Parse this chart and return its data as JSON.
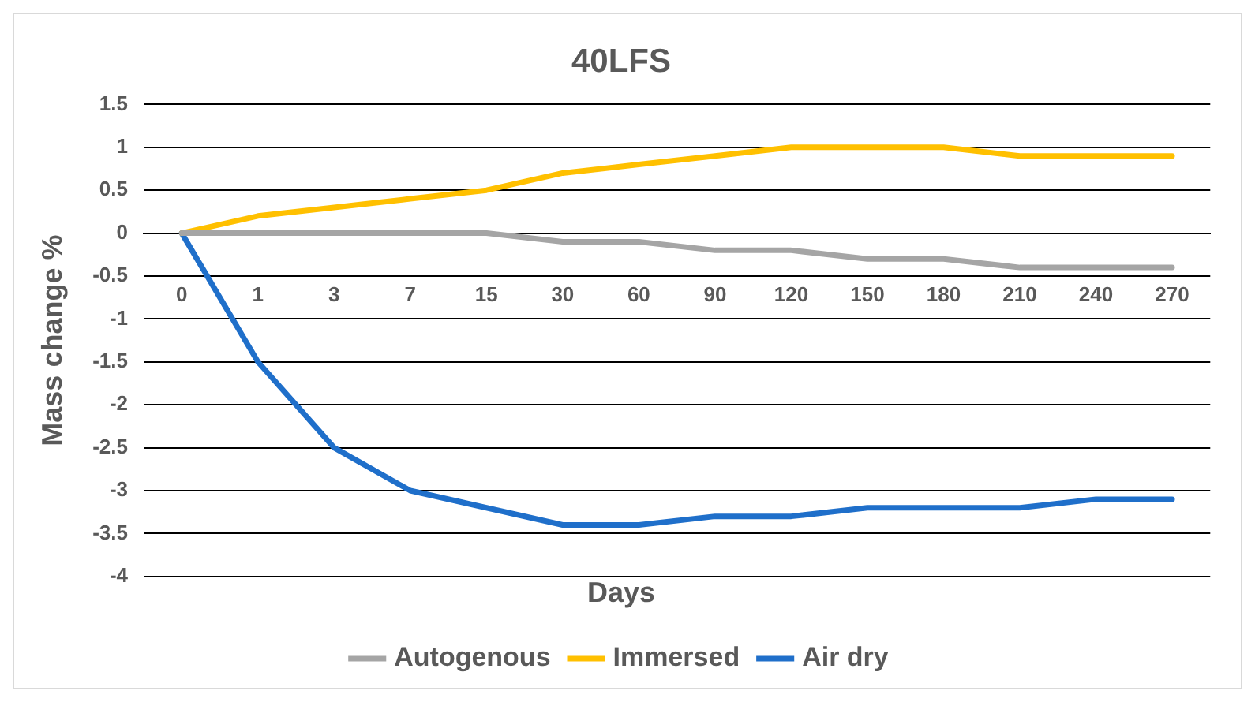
{
  "chart_data": {
    "type": "line",
    "title": "40LFS",
    "xlabel": "Days",
    "ylabel": "Mass change %",
    "categories": [
      "0",
      "1",
      "3",
      "7",
      "15",
      "30",
      "60",
      "90",
      "120",
      "150",
      "180",
      "210",
      "240",
      "270"
    ],
    "series": [
      {
        "name": "Autogenous",
        "color": "#a5a5a5",
        "values": [
          0,
          0,
          0,
          0,
          0,
          -0.1,
          -0.1,
          -0.2,
          -0.2,
          -0.3,
          -0.3,
          -0.4,
          -0.4,
          -0.4
        ]
      },
      {
        "name": "Immersed",
        "color": "#ffc000",
        "values": [
          0,
          0.2,
          0.3,
          0.4,
          0.5,
          0.7,
          0.8,
          0.9,
          1,
          1,
          1,
          0.9,
          0.9,
          0.9
        ]
      },
      {
        "name": "Air dry",
        "color": "#1f6fca",
        "values": [
          0,
          -1.5,
          -2.5,
          -3,
          -3.2,
          -3.4,
          -3.4,
          -3.3,
          -3.3,
          -3.2,
          -3.2,
          -3.2,
          -3.1,
          -3.1
        ]
      }
    ],
    "ylim": [
      -4,
      1.5
    ],
    "yticks": [
      -4,
      -3.5,
      -3,
      -2.5,
      -2,
      -1.5,
      -1,
      -0.5,
      0,
      0.5,
      1,
      1.5
    ],
    "grid": "y",
    "legend": "bottom",
    "marker": "none",
    "line_style": "solid"
  }
}
